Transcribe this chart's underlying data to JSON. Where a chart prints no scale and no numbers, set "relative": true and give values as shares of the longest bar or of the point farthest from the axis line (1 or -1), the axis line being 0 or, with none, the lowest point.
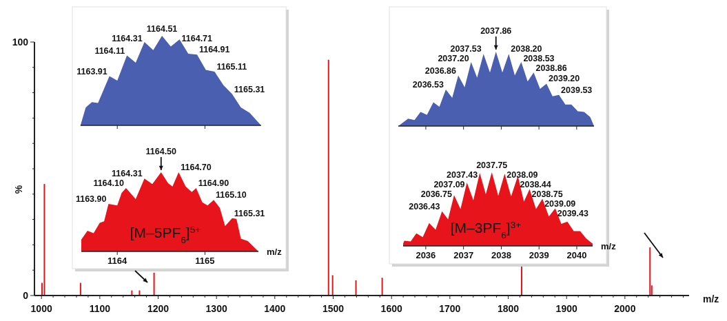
{
  "chart_data": [
    {
      "type": "bar",
      "xlabel": "m/z",
      "ylabel": "%",
      "color": "#e8141c",
      "xlim": [
        988,
        2110
      ],
      "ylim": [
        0,
        100
      ],
      "xticks": [
        1000,
        {
          "value": 1020,
          "label": null
        },
        {
          "value": 1040,
          "label": null
        },
        {
          "value": 1060,
          "label": null
        },
        {
          "value": 1080,
          "label": null
        },
        1100,
        {
          "value": 1120,
          "label": null
        },
        {
          "value": 1140,
          "label": null
        },
        {
          "value": 1160,
          "label": null
        },
        {
          "value": 1180,
          "label": null
        },
        1200,
        {
          "value": 1220,
          "label": null
        },
        {
          "value": 1240,
          "label": null
        },
        {
          "value": 1260,
          "label": null
        },
        {
          "value": 1280,
          "label": null
        },
        1300,
        {
          "value": 1320,
          "label": null
        },
        {
          "value": 1340,
          "label": null
        },
        {
          "value": 1360,
          "label": null
        },
        {
          "value": 1380,
          "label": null
        },
        1400,
        {
          "value": 1420,
          "label": null
        },
        {
          "value": 1440,
          "label": null
        },
        {
          "value": 1460,
          "label": null
        },
        {
          "value": 1480,
          "label": null
        },
        1500,
        {
          "value": 1520,
          "label": null
        },
        {
          "value": 1540,
          "label": null
        },
        {
          "value": 1560,
          "label": null
        },
        {
          "value": 1580,
          "label": null
        },
        1600,
        {
          "value": 1620,
          "label": null
        },
        {
          "value": 1640,
          "label": null
        },
        {
          "value": 1660,
          "label": null
        },
        {
          "value": 1680,
          "label": null
        },
        1700,
        {
          "value": 1720,
          "label": null
        },
        {
          "value": 1740,
          "label": null
        },
        {
          "value": 1760,
          "label": null
        },
        {
          "value": 1780,
          "label": null
        },
        1800,
        {
          "value": 1820,
          "label": null
        },
        {
          "value": 1840,
          "label": null
        },
        {
          "value": 1860,
          "label": null
        },
        {
          "value": 1880,
          "label": null
        },
        1900,
        {
          "value": 1920,
          "label": null
        },
        {
          "value": 1940,
          "label": null
        },
        {
          "value": 1960,
          "label": null
        },
        {
          "value": 1980,
          "label": null
        },
        2000,
        {
          "value": 2020,
          "label": null
        },
        {
          "value": 2040,
          "label": null
        },
        {
          "value": 2060,
          "label": null
        },
        {
          "value": 2080,
          "label": null
        },
        {
          "value": 2100,
          "label": null
        }
      ],
      "yticks": [
        0,
        {
          "value": 10,
          "label": null
        },
        {
          "value": 20,
          "label": null
        },
        {
          "value": 30,
          "label": null
        },
        {
          "value": 40,
          "label": null
        },
        {
          "value": 50,
          "label": null
        },
        {
          "value": 60,
          "label": null
        },
        {
          "value": 70,
          "label": null
        },
        {
          "value": 80,
          "label": null
        },
        {
          "value": 90,
          "label": null
        },
        100
      ],
      "x": [
        1001,
        1005,
        1067,
        1155,
        1168,
        1193,
        1492,
        1499,
        1539,
        1584,
        1823,
        2043,
        2046
      ],
      "values": [
        5,
        44,
        5,
        2,
        2,
        9,
        93,
        8,
        6,
        7,
        12,
        19,
        4
      ]
    },
    {
      "type": "area",
      "relative": true,
      "color": "#4a5fb0",
      "xlim": [
        1163.58,
        1165.64
      ],
      "xticks": [
        1164,
        1165
      ],
      "tick_labels": false,
      "x": [
        1163.58,
        1163.64,
        1163.71,
        1163.78,
        1163.91,
        1164.0,
        1164.11,
        1164.21,
        1164.31,
        1164.41,
        1164.51,
        1164.61,
        1164.71,
        1164.81,
        1164.91,
        1165.01,
        1165.11,
        1165.21,
        1165.31,
        1165.41,
        1165.51,
        1165.64
      ],
      "values": [
        0,
        0.2,
        0.26,
        0.25,
        0.55,
        0.5,
        0.78,
        0.7,
        0.93,
        0.84,
        1,
        0.88,
        0.96,
        0.8,
        0.79,
        0.62,
        0.6,
        0.45,
        0.35,
        0.2,
        0.14,
        0
      ],
      "annotations": [
        {
          "text": "1163.91",
          "x": 1163.91,
          "y": 0.55
        },
        {
          "text": "1164.11",
          "x": 1164.11,
          "y": 0.78
        },
        {
          "text": "1164.31",
          "x": 1164.31,
          "y": 0.93
        },
        {
          "text": "1164.51",
          "x": 1164.51,
          "y": 1
        },
        {
          "text": "1164.71",
          "x": 1164.71,
          "y": 0.96
        },
        {
          "text": "1164.91",
          "x": 1164.91,
          "y": 0.79
        },
        {
          "text": "1165.11",
          "x": 1165.11,
          "y": 0.6
        },
        {
          "text": "1165.31",
          "x": 1165.31,
          "y": 0.35
        }
      ]
    },
    {
      "type": "area",
      "relative": true,
      "color": "#e8141c",
      "xlabel": "m/z",
      "xlim": [
        1163.59,
        1165.61
      ],
      "xticks": [
        1164,
        1165
      ],
      "x": [
        1163.59,
        1163.66,
        1163.73,
        1163.8,
        1163.85,
        1163.9,
        1164.0,
        1164.05,
        1164.1,
        1164.21,
        1164.31,
        1164.4,
        1164.5,
        1164.58,
        1164.63,
        1164.7,
        1164.78,
        1164.85,
        1164.9,
        1164.97,
        1165.03,
        1165.1,
        1165.17,
        1165.23,
        1165.31,
        1165.36,
        1165.41,
        1165.49,
        1165.61
      ],
      "values": [
        0.15,
        0.26,
        0.23,
        0.36,
        0.38,
        0.6,
        0.58,
        0.74,
        0.8,
        0.66,
        0.92,
        0.85,
        1,
        0.86,
        0.82,
        1,
        0.82,
        0.75,
        0.8,
        0.62,
        0.58,
        0.65,
        0.55,
        0.32,
        0.42,
        0.41,
        0.16,
        0.13,
        0
      ],
      "annotations": [
        {
          "text": "1163.90",
          "x": 1163.9,
          "y": 0.6
        },
        {
          "text": "1164.10",
          "x": 1164.1,
          "y": 0.8
        },
        {
          "text": "1164.31",
          "x": 1164.31,
          "y": 0.92
        },
        {
          "text": "1164.50",
          "x": 1164.5,
          "y": 1
        },
        {
          "text": "1164.70",
          "x": 1164.7,
          "y": 1
        },
        {
          "text": "1164.90",
          "x": 1164.9,
          "y": 0.8
        },
        {
          "text": "1165.10",
          "x": 1165.1,
          "y": 0.65
        },
        {
          "text": "1165.31",
          "x": 1165.31,
          "y": 0.42
        },
        "[M–5PF$_{6}$]$^{5+}$"
      ]
    },
    {
      "type": "area",
      "relative": true,
      "color": "#4a5fb0",
      "xlim": [
        2035.27,
        2040.46
      ],
      "xticks": [
        2036,
        2037,
        2038,
        2039,
        2040
      ],
      "tick_labels": false,
      "x": [
        2035.27,
        2035.53,
        2035.7,
        2035.86,
        2036.03,
        2036.2,
        2036.36,
        2036.53,
        2036.7,
        2036.86,
        2037.03,
        2037.2,
        2037.36,
        2037.53,
        2037.7,
        2037.86,
        2038.03,
        2038.2,
        2038.36,
        2038.53,
        2038.7,
        2038.86,
        2039.03,
        2039.2,
        2039.36,
        2039.53,
        2039.7,
        2039.86,
        2040.03,
        2040.2,
        2040.36,
        2040.46
      ],
      "values": [
        0,
        0.1,
        0.08,
        0.19,
        0.15,
        0.32,
        0.26,
        0.49,
        0.38,
        0.68,
        0.52,
        0.86,
        0.65,
        0.97,
        0.72,
        1,
        0.72,
        0.97,
        0.68,
        0.86,
        0.6,
        0.72,
        0.5,
        0.57,
        0.4,
        0.42,
        0.29,
        0.29,
        0.2,
        0.19,
        0.12,
        0
      ],
      "annotations": [
        {
          "text": "2036.53",
          "x": 2036.53,
          "y": 0.49
        },
        {
          "text": "2036.86",
          "x": 2036.86,
          "y": 0.68
        },
        {
          "text": "2037.20",
          "x": 2037.2,
          "y": 0.86
        },
        {
          "text": "2037.53",
          "x": 2037.53,
          "y": 0.97
        },
        {
          "text": "2037.86",
          "x": 2037.86,
          "y": 1
        },
        {
          "text": "2038.20",
          "x": 2038.2,
          "y": 0.97
        },
        {
          "text": "2038.53",
          "x": 2038.53,
          "y": 0.86
        },
        {
          "text": "2038.86",
          "x": 2038.86,
          "y": 0.72
        },
        {
          "text": "2039.20",
          "x": 2039.2,
          "y": 0.57
        },
        {
          "text": "2039.53",
          "x": 2039.53,
          "y": 0.42
        }
      ]
    },
    {
      "type": "area",
      "relative": true,
      "color": "#e8141c",
      "xlabel": "m/z",
      "xlim": [
        2035.4,
        2040.42
      ],
      "xticks": [
        2036,
        2037,
        2038,
        2039,
        2040
      ],
      "x": [
        2035.4,
        2035.43,
        2035.6,
        2035.75,
        2035.92,
        2036.09,
        2036.26,
        2036.43,
        2036.59,
        2036.75,
        2036.92,
        2037.09,
        2037.26,
        2037.43,
        2037.59,
        2037.75,
        2037.92,
        2038.09,
        2038.26,
        2038.44,
        2038.6,
        2038.75,
        2038.92,
        2039.09,
        2039.26,
        2039.43,
        2039.59,
        2039.75,
        2039.92,
        2040.09,
        2040.25,
        2040.42
      ],
      "values": [
        0.03,
        0.07,
        0.06,
        0.17,
        0.12,
        0.31,
        0.22,
        0.47,
        0.36,
        0.69,
        0.5,
        0.86,
        0.62,
        0.99,
        0.7,
        1,
        0.68,
        0.98,
        0.67,
        0.95,
        0.6,
        0.77,
        0.5,
        0.64,
        0.4,
        0.51,
        0.3,
        0.33,
        0.2,
        0.2,
        0.1,
        0.03
      ],
      "annotations": [
        {
          "text": "2036.43",
          "x": 2036.43,
          "y": 0.47
        },
        {
          "text": "2036.75",
          "x": 2036.75,
          "y": 0.69
        },
        {
          "text": "2037.09",
          "x": 2037.09,
          "y": 0.86
        },
        {
          "text": "2037.43",
          "x": 2037.43,
          "y": 0.99
        },
        {
          "text": "2037.75",
          "x": 2037.75,
          "y": 1
        },
        {
          "text": "2038.09",
          "x": 2038.09,
          "y": 0.98
        },
        {
          "text": "2038.44",
          "x": 2038.44,
          "y": 0.95
        },
        {
          "text": "2038.75",
          "x": 2038.75,
          "y": 0.77
        },
        {
          "text": "2039.09",
          "x": 2039.09,
          "y": 0.64
        },
        {
          "text": "2039.43",
          "x": 2039.43,
          "y": 0.51
        },
        "[M–3PF$_{6}$]$^{3+}$"
      ]
    }
  ]
}
